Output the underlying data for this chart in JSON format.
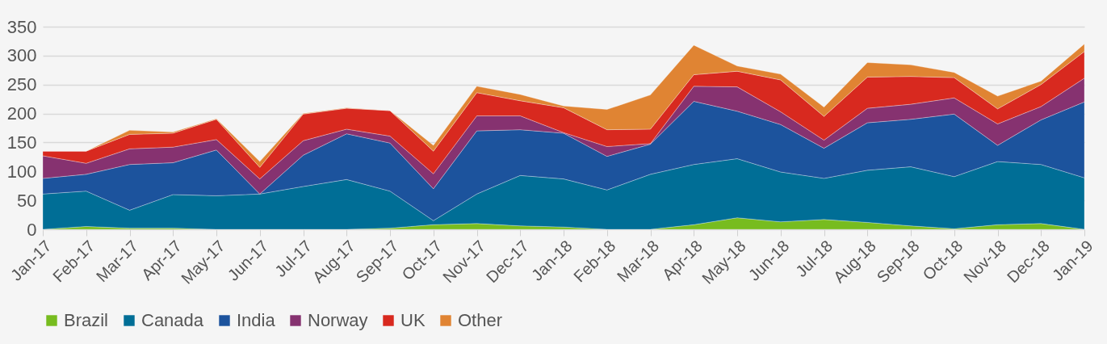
{
  "chart_data": {
    "type": "area",
    "stacked": true,
    "categories": [
      "Jan-17",
      "Feb-17",
      "Mar-17",
      "Apr-17",
      "May-17",
      "Jun-17",
      "Jul-17",
      "Aug-17",
      "Sep-17",
      "Oct-17",
      "Nov-17",
      "Dec-17",
      "Jan-18",
      "Feb-18",
      "Mar-18",
      "Apr-18",
      "May-18",
      "Jun-18",
      "Jul-18",
      "Aug-18",
      "Sep-18",
      "Oct-18",
      "Nov-18",
      "Dec-18",
      "Jan-19"
    ],
    "series": [
      {
        "name": "Brazil",
        "color": "#77bc1f",
        "values": [
          0,
          5,
          2,
          2,
          0,
          0,
          0,
          0,
          2,
          8,
          10,
          6,
          4,
          0,
          0,
          8,
          20,
          13,
          17,
          12,
          6,
          1,
          8,
          10,
          0
        ]
      },
      {
        "name": "Canada",
        "color": "#006e96",
        "values": [
          61,
          61,
          31,
          58,
          58,
          61,
          74,
          86,
          64,
          7,
          51,
          87,
          83,
          68,
          95,
          104,
          102,
          86,
          71,
          90,
          102,
          90,
          109,
          102,
          89
        ]
      },
      {
        "name": "India",
        "color": "#1c539d",
        "values": [
          27,
          29,
          79,
          55,
          79,
          0,
          54,
          79,
          83,
          55,
          109,
          79,
          79,
          58,
          52,
          109,
          82,
          82,
          52,
          82,
          82,
          108,
          28,
          77,
          131
        ]
      },
      {
        "name": "Norway",
        "color": "#863270",
        "values": [
          39,
          19,
          27,
          27,
          18,
          26,
          25,
          8,
          12,
          26,
          26,
          24,
          1,
          17,
          1,
          26,
          42,
          22,
          14,
          25,
          26,
          28,
          37,
          23,
          41
        ]
      },
      {
        "name": "UK",
        "color": "#d8291f",
        "values": [
          8,
          21,
          25,
          24,
          35,
          20,
          46,
          36,
          44,
          39,
          40,
          26,
          43,
          29,
          25,
          20,
          27,
          55,
          41,
          54,
          48,
          35,
          26,
          38,
          46
        ]
      },
      {
        "name": "Other",
        "color": "#e08433",
        "values": [
          0,
          0,
          7,
          2,
          1,
          10,
          1,
          1,
          0,
          10,
          11,
          11,
          3,
          35,
          59,
          51,
          9,
          10,
          16,
          25,
          20,
          9,
          22,
          6,
          13
        ]
      }
    ],
    "ylim": [
      0,
      350
    ],
    "yticks": [
      0,
      50,
      100,
      150,
      200,
      250,
      300,
      350
    ],
    "grid": "y",
    "legend": "bottom"
  }
}
